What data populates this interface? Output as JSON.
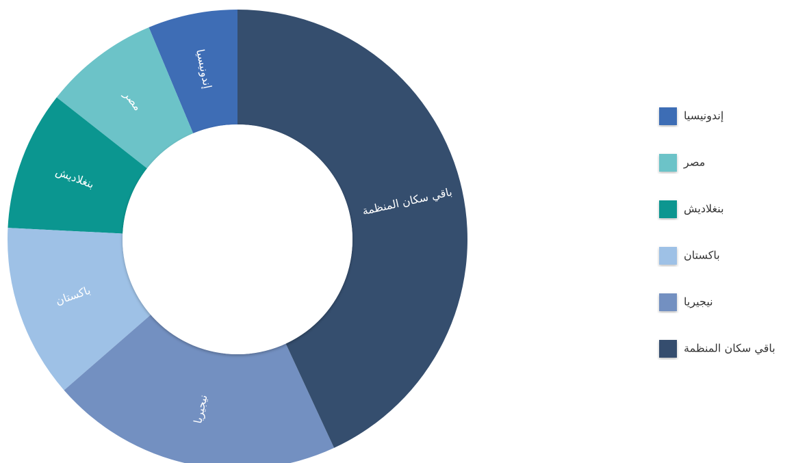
{
  "chart_data": {
    "type": "pie",
    "variant": "donut",
    "categories": [
      "إندونيسيا",
      "مصر",
      "بنغلاديش",
      "باكستان",
      "نيجيريا",
      "باقي سكان المنظمة"
    ],
    "values": [
      6.3,
      8.1,
      9.8,
      12.2,
      20.5,
      43.1
    ],
    "unit": "%",
    "colors": [
      "#3e6db5",
      "#6cc3c8",
      "#0b9690",
      "#9ec1e6",
      "#7390c1",
      "#354e6e"
    ],
    "legend": {
      "position": "right",
      "entries": [
        "إندونيسيا",
        "مصر",
        "بنغلاديش",
        "باكستان",
        "نيجيريا",
        "باقي سكان المنظمة"
      ]
    },
    "title": ""
  }
}
